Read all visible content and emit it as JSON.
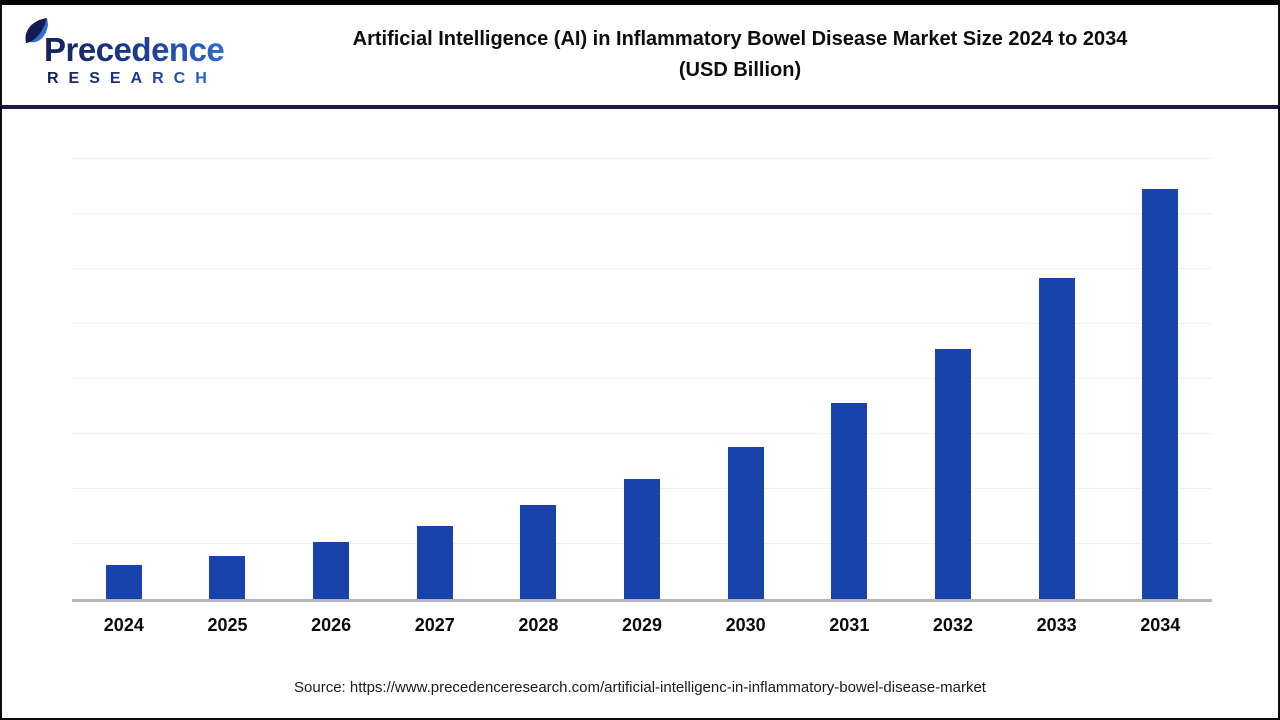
{
  "header": {
    "logo": {
      "line1": "Precedence",
      "line2": "RESEARCH"
    },
    "title_line1": "Artificial Intelligence (AI) in Inflammatory Bowel Disease Market Size 2024 to 2034",
    "title_line2": "(USD Billion)"
  },
  "chart_data": {
    "type": "bar",
    "title": "Artificial Intelligence (AI) in Inflammatory Bowel Disease Market Size 2024 to 2034 (USD Billion)",
    "categories": [
      "2024",
      "2025",
      "2026",
      "2027",
      "2028",
      "2029",
      "2030",
      "2031",
      "2032",
      "2033",
      "2034"
    ],
    "values": [
      0.62,
      0.79,
      1.03,
      1.32,
      1.71,
      2.18,
      2.77,
      3.56,
      4.55,
      5.83,
      7.46
    ],
    "unit": "USD Billion",
    "ylim": [
      0,
      8
    ],
    "grid_interval": 1,
    "grid": "horizontal-only",
    "y_axis_labels_visible": false,
    "data_labels_visible": false,
    "legend_position": "none",
    "bar_color": "#1843ab",
    "gridline_color": "#f0f0ee",
    "axis_color": "#b5b5b5"
  },
  "brand": {
    "navy": "#141b4d",
    "blue": "#2f6fd6",
    "header_rule": "#191942"
  },
  "footer": {
    "source": "Source: https://www.precedenceresearch.com/artificial-intelligenc-in-inflammatory-bowel-disease-market"
  }
}
